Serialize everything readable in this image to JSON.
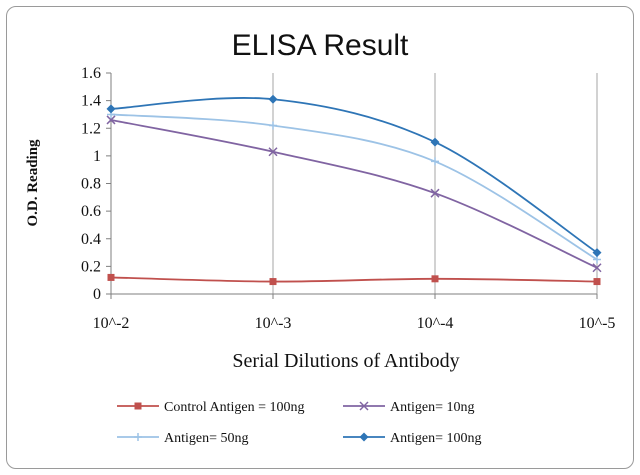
{
  "chart_data": {
    "type": "line",
    "title": "ELISA Result",
    "xlabel": "Serial Dilutions  of Antibody",
    "ylabel": "O.D. Reading",
    "categories": [
      "10^-2",
      "10^-3",
      "10^-4",
      "10^-5"
    ],
    "yticks": [
      "0",
      "0.2",
      "0.4",
      "0.6",
      "0.8",
      "1",
      "1.2",
      "1.4",
      "1.6"
    ],
    "ylim": [
      0,
      1.6
    ],
    "grid": "vertical",
    "legend_position": "bottom",
    "series": [
      {
        "name": "Control Antigen = 100ng",
        "values": [
          0.12,
          0.09,
          0.11,
          0.09
        ],
        "color": "#c0504d",
        "marker": "square"
      },
      {
        "name": "Antigen= 10ng",
        "values": [
          1.26,
          1.03,
          0.73,
          0.19
        ],
        "color": "#8064a2",
        "marker": "x"
      },
      {
        "name": "Antigen= 50ng",
        "values": [
          1.3,
          1.22,
          0.96,
          0.25
        ],
        "color": "#9dc3e6",
        "marker": "plus"
      },
      {
        "name": "Antigen= 100ng",
        "values": [
          1.34,
          1.41,
          1.1,
          0.3
        ],
        "color": "#2e75b6",
        "marker": "diamond"
      }
    ]
  }
}
